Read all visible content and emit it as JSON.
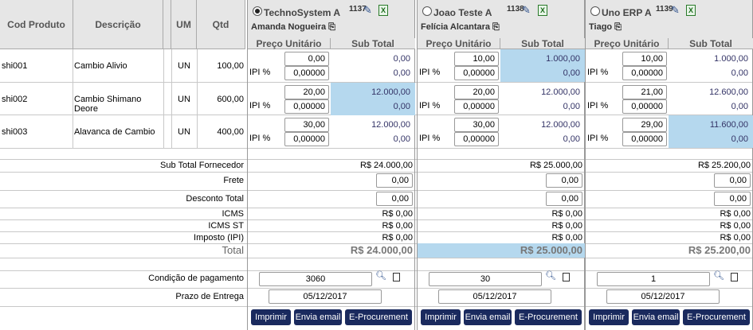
{
  "headers": {
    "cod": "Cod Produto",
    "desc": "Descrição",
    "um": "UM",
    "qtd": "Qtd"
  },
  "products": [
    {
      "cod": "shi001",
      "desc": "Cambio Alivio",
      "um": "UN",
      "qtd": "100,00"
    },
    {
      "cod": "shi002",
      "desc": "Cambio Shimano Deore",
      "um": "UN",
      "qtd": "600,00"
    },
    {
      "cod": "shi003",
      "desc": "Alavanca de Cambio",
      "um": "UN",
      "qtd": "400,00"
    }
  ],
  "ipi_label": "IPI %",
  "col_labels": {
    "preco": "Preço Unitário",
    "sub": "Sub Total"
  },
  "summary_labels": {
    "sub_total": "Sub Total Fornecedor",
    "frete": "Frete",
    "desconto": "Desconto Total",
    "icms": "ICMS",
    "icms_st": "ICMS ST",
    "ipi": "Imposto (IPI)",
    "total": "Total",
    "condicao": "Condição de pagamento",
    "prazo": "Prazo de Entrega"
  },
  "buttons": {
    "imprimir": "Imprimir",
    "email": "Envia email",
    "eproc": "E-Procurement"
  },
  "highlight_color": "#b5d8ee",
  "suppliers": [
    {
      "name": "TechnoSystem A",
      "number": "1137",
      "contact": "Amanda Nogueira",
      "selected": true,
      "rows": [
        {
          "price": "0,00",
          "subtotal": "0,00",
          "ipi": "0,00000",
          "ipi_val": "0,00",
          "best": false
        },
        {
          "price": "20,00",
          "subtotal": "12.000,00",
          "ipi": "0,00000",
          "ipi_val": "0,00",
          "best": true
        },
        {
          "price": "30,00",
          "subtotal": "12.000,00",
          "ipi": "0,00000",
          "ipi_val": "0,00",
          "best": false
        }
      ],
      "sub_total": "R$ 24.000,00",
      "frete": "0,00",
      "desconto": "0,00",
      "icms": "R$ 0,00",
      "icms_st": "R$ 0,00",
      "ipi": "R$ 0,00",
      "total": "R$ 24.000,00",
      "total_best": false,
      "condicao": "3060",
      "prazo": "05/12/2017"
    },
    {
      "name": "Joao Teste A",
      "number": "1138",
      "contact": "Felícia Alcantara",
      "selected": false,
      "rows": [
        {
          "price": "10,00",
          "subtotal": "1.000,00",
          "ipi": "0,00000",
          "ipi_val": "0,00",
          "best": true
        },
        {
          "price": "20,00",
          "subtotal": "12.000,00",
          "ipi": "0,00000",
          "ipi_val": "0,00",
          "best": false
        },
        {
          "price": "30,00",
          "subtotal": "12.000,00",
          "ipi": "0,00000",
          "ipi_val": "0,00",
          "best": false
        }
      ],
      "sub_total": "R$ 25.000,00",
      "frete": "0,00",
      "desconto": "0,00",
      "icms": "R$ 0,00",
      "icms_st": "R$ 0,00",
      "ipi": "R$ 0,00",
      "total": "R$ 25.000,00",
      "total_best": true,
      "condicao": "30",
      "prazo": "05/12/2017"
    },
    {
      "name": "Uno ERP A",
      "number": "1139",
      "contact": "Tiago",
      "selected": false,
      "rows": [
        {
          "price": "10,00",
          "subtotal": "1.000,00",
          "ipi": "0,00000",
          "ipi_val": "0,00",
          "best": false
        },
        {
          "price": "21,00",
          "subtotal": "12.600,00",
          "ipi": "0,00000",
          "ipi_val": "0,00",
          "best": false
        },
        {
          "price": "29,00",
          "subtotal": "11.600,00",
          "ipi": "0,00000",
          "ipi_val": "0,00",
          "best": true
        }
      ],
      "sub_total": "R$ 25.200,00",
      "frete": "0,00",
      "desconto": "0,00",
      "icms": "R$ 0,00",
      "icms_st": "R$ 0,00",
      "ipi": "R$ 0,00",
      "total": "R$ 25.200,00",
      "total_best": false,
      "condicao": "1",
      "prazo": "05/12/2017"
    }
  ]
}
